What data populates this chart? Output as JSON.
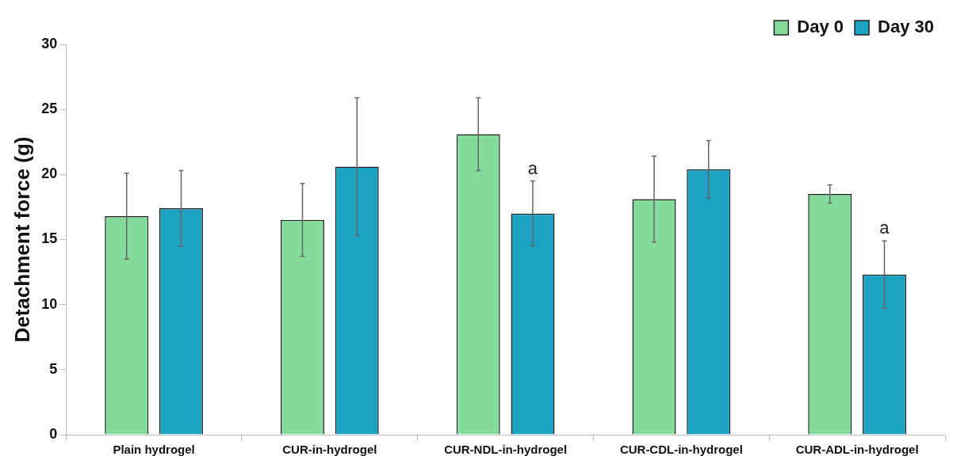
{
  "chart_data": {
    "type": "bar",
    "ylabel": "Detachment force (g)",
    "categories": [
      "Plain hydrogel",
      "CUR-in-hydrogel",
      "CUR-NDL-in-hydrogel",
      "CUR-CDL-in-hydrogel",
      "CUR-ADL-in-hydrogel"
    ],
    "series": [
      {
        "name": "Day 0",
        "color": "#84dc9c",
        "values": [
          16.8,
          16.5,
          23.1,
          18.1,
          18.5
        ],
        "errors": [
          3.3,
          2.8,
          2.8,
          3.3,
          0.7
        ]
      },
      {
        "name": "Day 30",
        "color": "#1ca2c2",
        "values": [
          17.4,
          20.6,
          17.0,
          20.4,
          12.3
        ],
        "errors": [
          2.9,
          5.3,
          2.5,
          2.2,
          2.6
        ],
        "value_labels": [
          null,
          null,
          "a",
          null,
          "a"
        ]
      }
    ],
    "ylim": [
      0,
      30
    ],
    "yticks": [
      0,
      5,
      10,
      15,
      20,
      25,
      30
    ],
    "grid": false,
    "legend": "top right"
  }
}
